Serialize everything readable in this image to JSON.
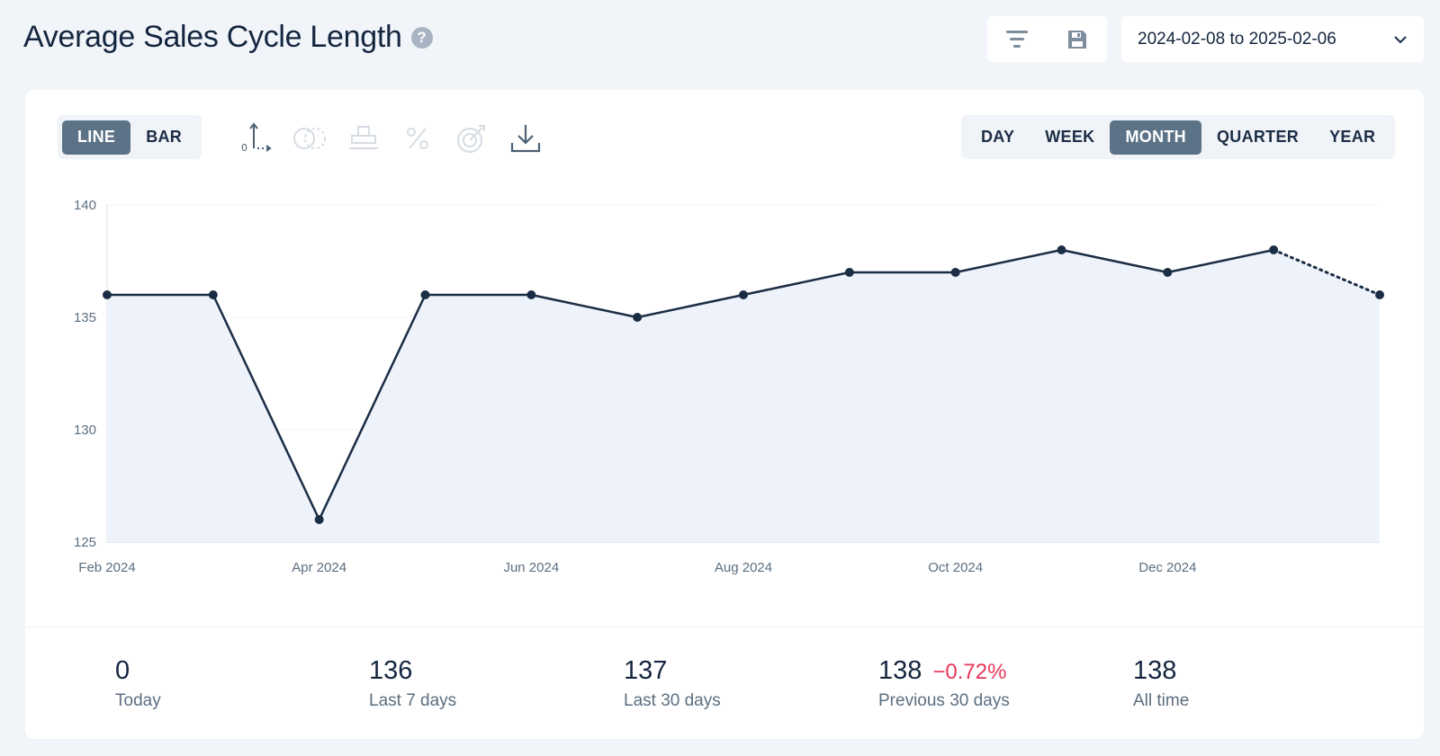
{
  "header": {
    "title": "Average Sales Cycle Length",
    "help_glyph": "?",
    "date_range": "2024-02-08 to 2025-02-06"
  },
  "chart_type_toggle": {
    "options": [
      "LINE",
      "BAR"
    ],
    "selected": "LINE"
  },
  "chart_tools": [
    "axis-icon",
    "compare-icon",
    "stack-icon",
    "percent-icon",
    "target-icon",
    "download-icon"
  ],
  "period_toggle": {
    "options": [
      "DAY",
      "WEEK",
      "MONTH",
      "QUARTER",
      "YEAR"
    ],
    "selected": "MONTH"
  },
  "colors": {
    "line": "#1b2d45",
    "area": "#eef2fb",
    "active_toggle": "#5c7286",
    "negative_delta": "#e8375a"
  },
  "chart_data": {
    "type": "line",
    "title": "",
    "xlabel": "",
    "ylabel": "",
    "ylim": [
      125,
      140
    ],
    "yticks": [
      125,
      130,
      135,
      140
    ],
    "x_tick_labels": [
      "Feb 2024",
      "Apr 2024",
      "Jun 2024",
      "Aug 2024",
      "Oct 2024",
      "Dec 2024"
    ],
    "x": [
      "2024-02",
      "2024-03",
      "2024-04",
      "2024-05",
      "2024-06",
      "2024-07",
      "2024-08",
      "2024-09",
      "2024-10",
      "2024-11",
      "2024-12",
      "2025-01",
      "2025-02"
    ],
    "series": [
      {
        "values": [
          136,
          136,
          126,
          136,
          136,
          135,
          136,
          137,
          137,
          138,
          137,
          138,
          136
        ],
        "partial_last_point": true
      }
    ],
    "grid": true,
    "filled_area": true
  },
  "stats": [
    {
      "value": "0",
      "label": "Today"
    },
    {
      "value": "136",
      "label": "Last 7 days"
    },
    {
      "value": "137",
      "label": "Last 30 days"
    },
    {
      "value": "138",
      "label": "Previous 30 days",
      "delta": "−0.72%"
    },
    {
      "value": "138",
      "label": "All time"
    }
  ]
}
